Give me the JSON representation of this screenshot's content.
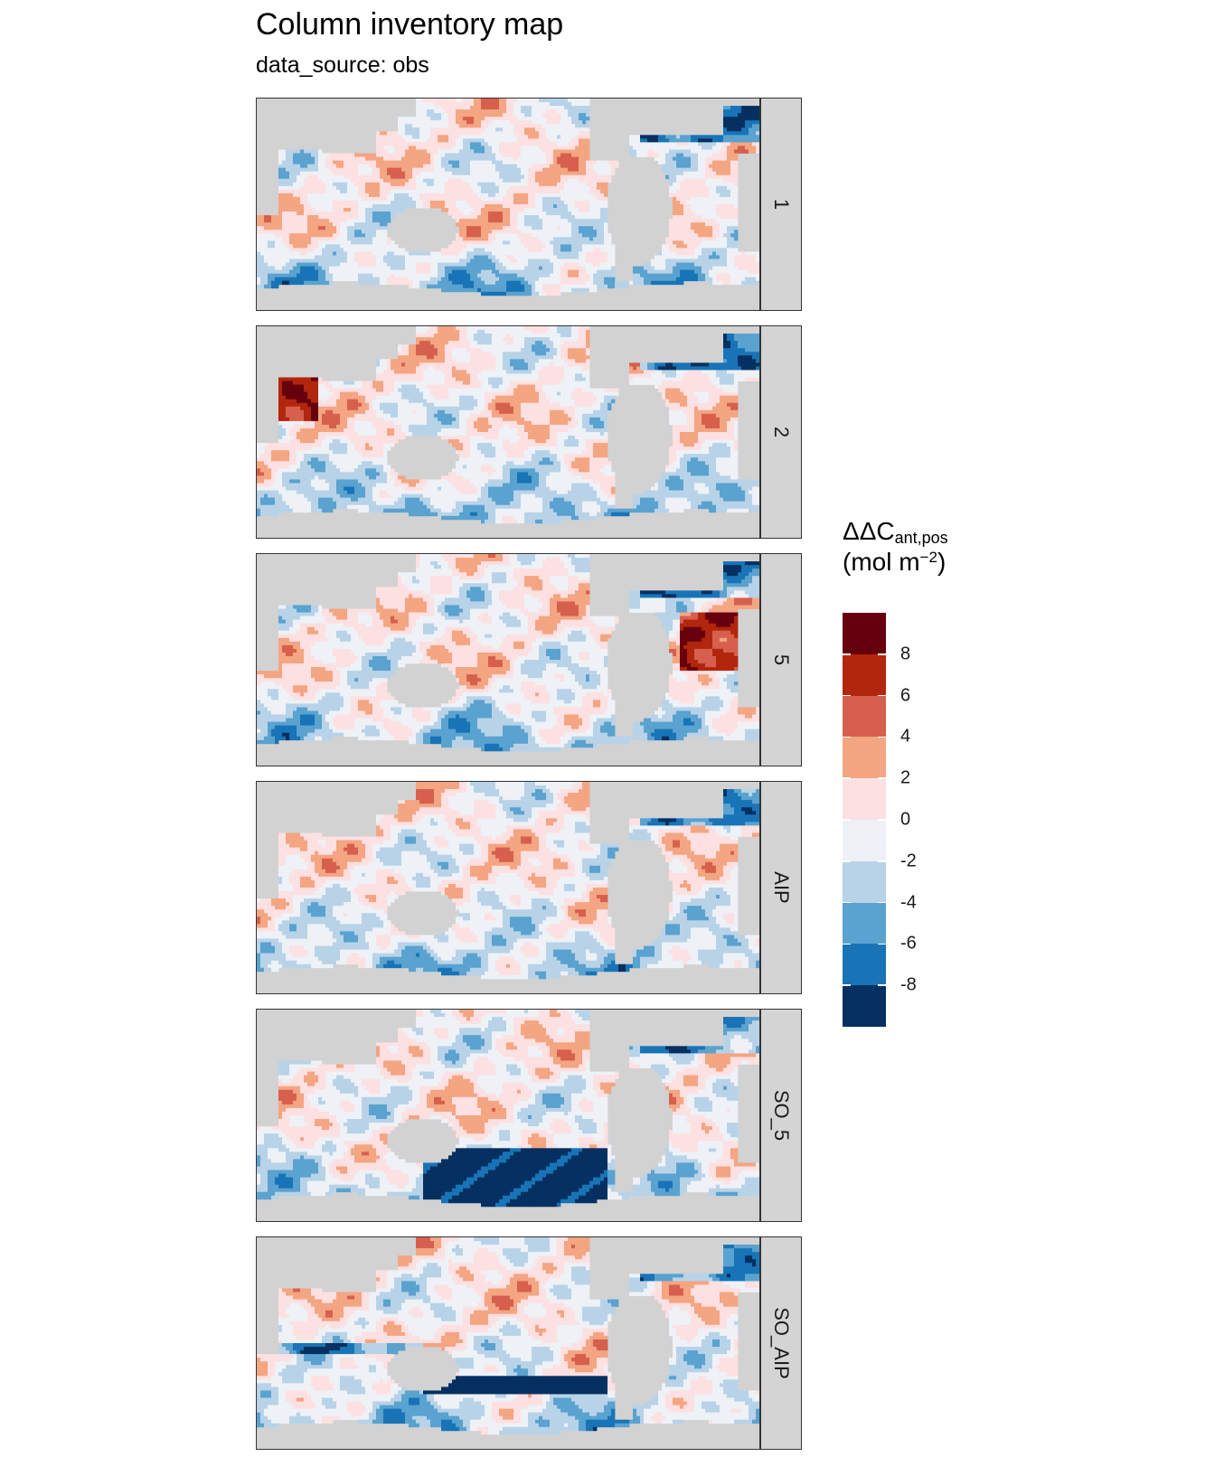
{
  "title": "Column inventory map",
  "subtitle": "data_source: obs",
  "legend": {
    "title_main": "ΔΔC",
    "title_sub": "ant,pos",
    "unit_open": "(mol m",
    "unit_sup": "−2",
    "unit_close": ")",
    "colors": [
      "#67000d",
      "#b2260e",
      "#d6604d",
      "#f4a582",
      "#fde0e1",
      "#eef1f6",
      "#b8d3e8",
      "#5aa2cf",
      "#1874b6",
      "#053061"
    ],
    "tick_labels": [
      "8",
      "6",
      "4",
      "2",
      "0",
      "-2",
      "-4",
      "-6",
      "-8"
    ]
  },
  "chart_data": {
    "type": "heatmap",
    "title": "Column inventory map",
    "subtitle": "data_source: obs",
    "facets": [
      "1",
      "2",
      "5",
      "AIP",
      "SO_5",
      "SO_AIP"
    ],
    "legend_title": "ΔΔCant,pos (mol m−2)",
    "color_scale_breaks": [
      -10,
      -8,
      -6,
      -4,
      -2,
      0,
      2,
      4,
      6,
      8,
      10
    ],
    "color_scale_labels": [
      "8",
      "6",
      "4",
      "2",
      "0",
      "-2",
      "-4",
      "-6",
      "-8"
    ],
    "colormap": "diverging red-blue (RdBu)",
    "land_color": "#d2d2d2",
    "legend_position": "right"
  }
}
